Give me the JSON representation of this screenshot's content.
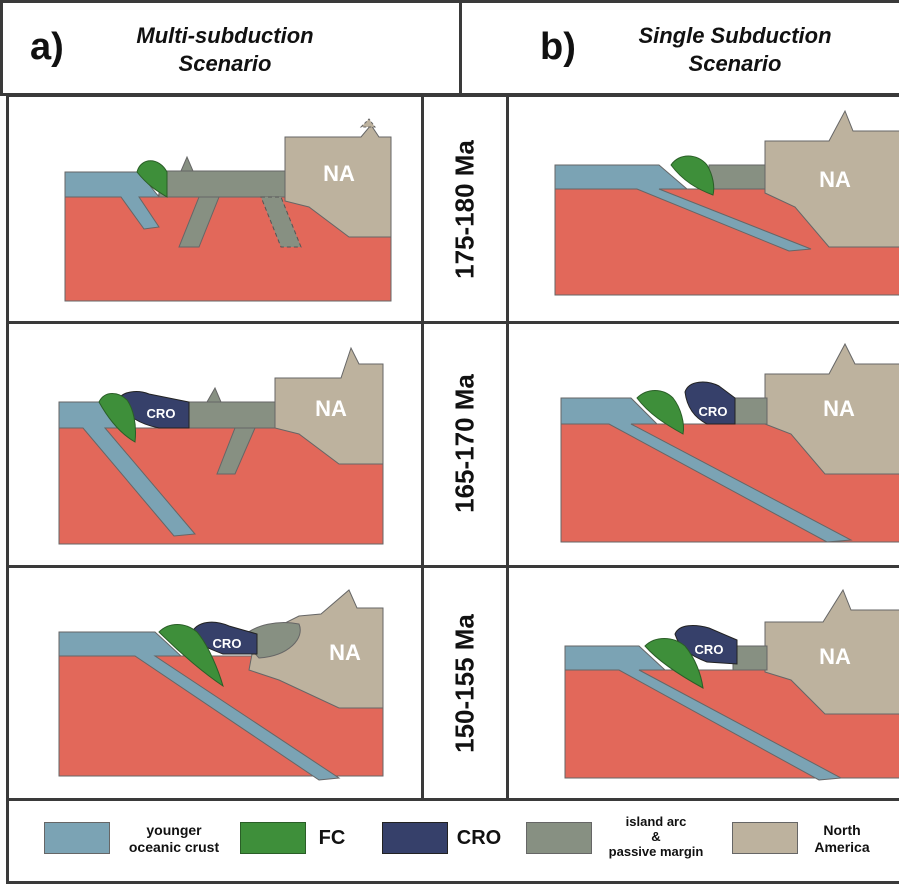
{
  "header": {
    "a_letter": "a)",
    "a_title": "Multi-subduction\nScenario",
    "b_letter": "b)",
    "b_title": "Single Subduction\nScenario"
  },
  "ages": [
    "175-180 Ma",
    "165-170 Ma",
    "150-155 Ma"
  ],
  "labels": {
    "na": "NA",
    "cro": "CRO"
  },
  "legend": [
    {
      "key": "younger_oceanic_crust",
      "label": "younger\noceanic crust",
      "color": "#7ba3b4"
    },
    {
      "key": "fc",
      "label": "FC",
      "color": "#3e8f3a"
    },
    {
      "key": "cro",
      "label": "CRO",
      "color": "#36406a"
    },
    {
      "key": "island_arc",
      "label": "island arc\n&\npassive margin",
      "color": "#879082"
    },
    {
      "key": "north_america",
      "label": "North\nAmerica",
      "color": "#bdb29e"
    }
  ],
  "colors": {
    "mantle": "#e2685a",
    "oceanic": "#7ba3b4",
    "fc": "#3e8f3a",
    "cro": "#36406a",
    "arc": "#879082",
    "na": "#bdb29e",
    "frame": "#3a3a3a"
  }
}
